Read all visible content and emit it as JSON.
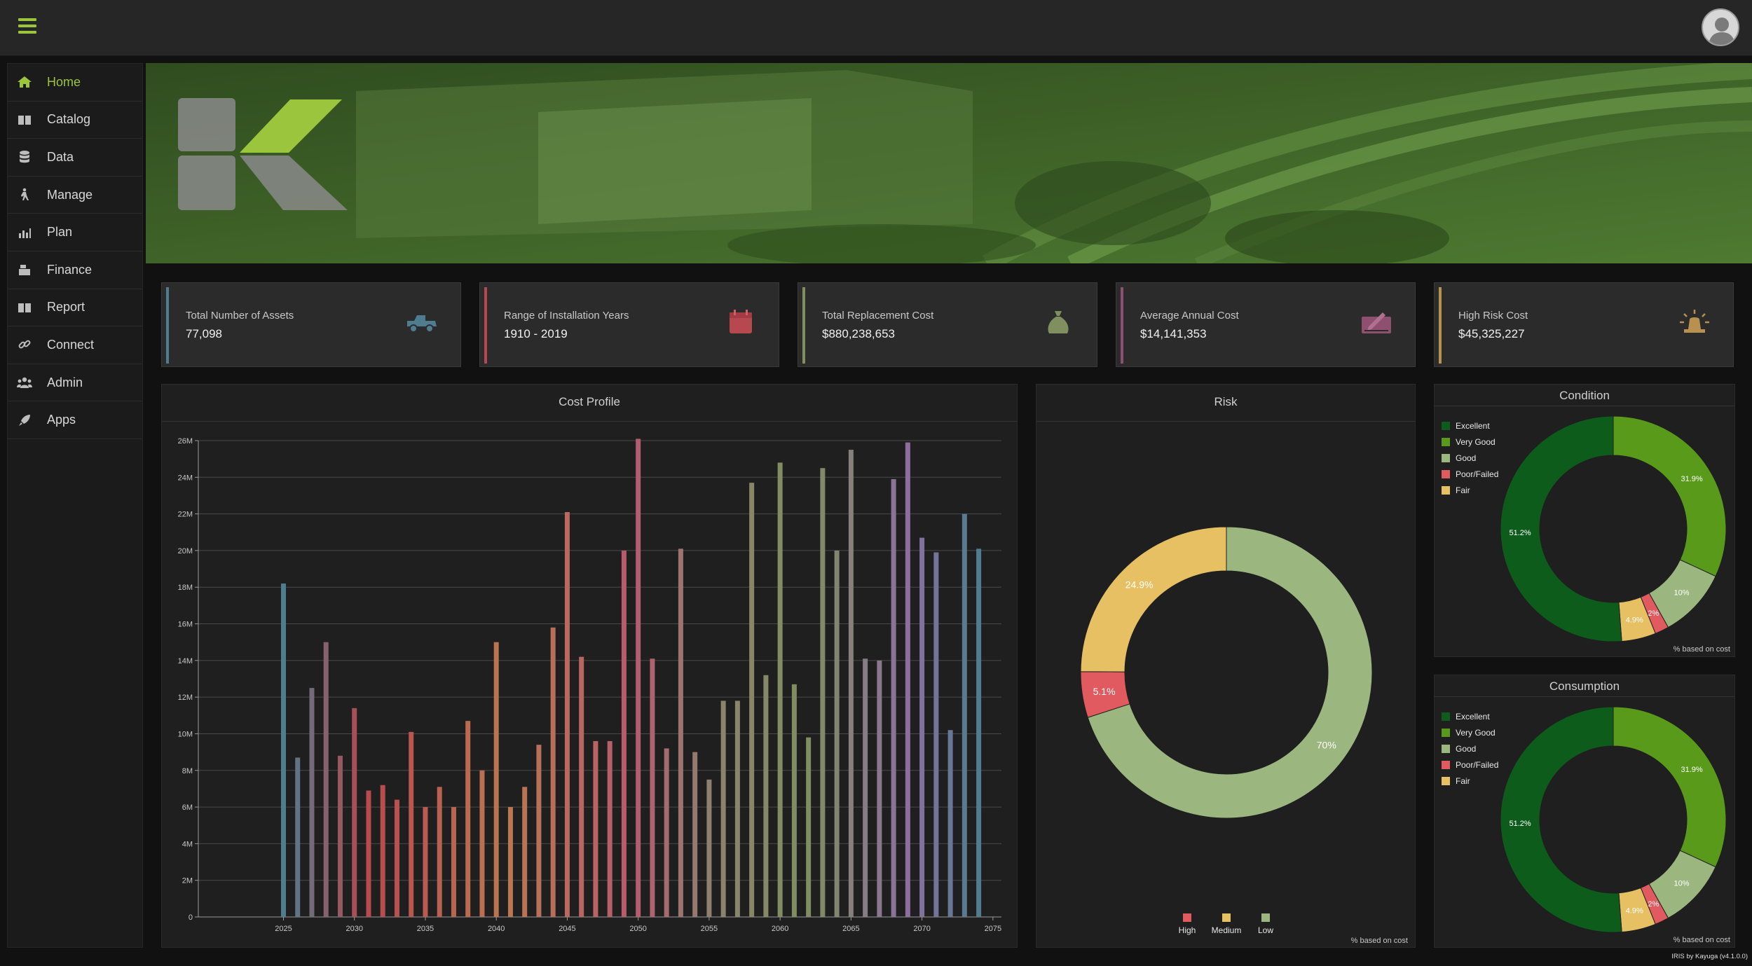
{
  "topbar": {
    "menu_icon": "hamburger-icon",
    "avatar_icon": "user-avatar-icon",
    "accent": "#9bc53d"
  },
  "sidebar": {
    "items": [
      {
        "label": "Home",
        "icon": "home-icon",
        "active": true
      },
      {
        "label": "Catalog",
        "icon": "book-icon",
        "active": false
      },
      {
        "label": "Data",
        "icon": "database-icon",
        "active": false
      },
      {
        "label": "Manage",
        "icon": "hiker-icon",
        "active": false
      },
      {
        "label": "Plan",
        "icon": "bar-chart-icon",
        "active": false
      },
      {
        "label": "Finance",
        "icon": "cash-register-icon",
        "active": false
      },
      {
        "label": "Report",
        "icon": "book-icon",
        "active": false
      },
      {
        "label": "Connect",
        "icon": "link-icon",
        "active": false
      },
      {
        "label": "Admin",
        "icon": "users-icon",
        "active": false
      },
      {
        "label": "Apps",
        "icon": "rocket-icon",
        "active": false
      }
    ]
  },
  "hero": {
    "logo": "K",
    "logo_icon": "kayuga-logo-icon"
  },
  "stats": [
    {
      "label": "Total Number of Assets",
      "value": "77,098",
      "color": "#4f7d8f",
      "icon": "truck-icon"
    },
    {
      "label": "Range of Installation Years",
      "value": "1910 - 2019",
      "color": "#b8484f",
      "icon": "calendar-icon"
    },
    {
      "label": "Total Replacement Cost",
      "value": "$880,238,653",
      "color": "#7f8f5f",
      "icon": "money-bag-icon"
    },
    {
      "label": "Average Annual Cost",
      "value": "$14,141,353",
      "color": "#8f4f6f",
      "icon": "signature-icon"
    },
    {
      "label": "High Risk Cost",
      "value": "$45,325,227",
      "color": "#b89050",
      "icon": "alarm-light-icon"
    }
  ],
  "cost_profile": {
    "title": "Cost Profile",
    "chart_data": {
      "type": "bar",
      "x": [
        2025,
        2026,
        2027,
        2028,
        2029,
        2030,
        2031,
        2032,
        2033,
        2034,
        2035,
        2036,
        2037,
        2038,
        2039,
        2040,
        2041,
        2042,
        2043,
        2044,
        2045,
        2046,
        2047,
        2048,
        2049,
        2050,
        2051,
        2052,
        2053,
        2054,
        2055,
        2056,
        2057,
        2058,
        2059,
        2060,
        2061,
        2062,
        2063,
        2064,
        2065,
        2066,
        2067,
        2068,
        2069,
        2070,
        2071,
        2072,
        2073,
        2074
      ],
      "values": [
        18.2,
        8.7,
        12.5,
        15.0,
        8.8,
        11.4,
        6.9,
        7.2,
        6.4,
        10.1,
        6.0,
        7.1,
        6.0,
        10.7,
        8.0,
        15.0,
        6.0,
        7.1,
        9.4,
        15.8,
        22.1,
        14.2,
        9.6,
        9.6,
        20.0,
        26.1,
        14.1,
        9.2,
        20.1,
        9.0,
        7.5,
        11.8,
        11.8,
        23.7,
        13.2,
        24.8,
        12.7,
        9.8,
        24.5,
        20.0,
        25.5,
        14.1,
        14.0,
        23.9,
        25.9,
        20.7,
        19.9,
        10.2,
        22.0,
        20.1
      ],
      "unit": "M",
      "ylim": [
        0,
        26
      ],
      "yticks": [
        "0",
        "2M",
        "4M",
        "6M",
        "8M",
        "10M",
        "12M",
        "14M",
        "16M",
        "18M",
        "20M",
        "22M",
        "24M",
        "26M"
      ],
      "xticks": [
        "2025",
        "2030",
        "2035",
        "2040",
        "2045",
        "2050",
        "2055",
        "2060",
        "2065",
        "2070",
        "2075"
      ],
      "xlim": [
        2019,
        2075.6
      ],
      "grid": true
    }
  },
  "risk": {
    "title": "Risk",
    "note": "% based on cost",
    "chart_data": {
      "type": "pie",
      "slices": [
        {
          "label": "Low",
          "value": 70,
          "text": "70%",
          "color": "#9bb77f"
        },
        {
          "label": "High",
          "value": 5.1,
          "text": "5.1%",
          "color": "#e05a5f"
        },
        {
          "label": "Medium",
          "value": 24.9,
          "text": "24.9%",
          "color": "#e8c064"
        }
      ],
      "legend": [
        "High",
        "Medium",
        "Low"
      ],
      "legend_colors": [
        "#e05a5f",
        "#e8c064",
        "#9bb77f"
      ],
      "legend_position": "bottom"
    }
  },
  "condition": {
    "title": "Condition",
    "note": "% based on cost",
    "chart_data": {
      "type": "pie",
      "slices": [
        {
          "label": "Very Good",
          "value": 31.9,
          "text": "31.9%",
          "color": "#5a9a1a"
        },
        {
          "label": "Good",
          "value": 10,
          "text": "10%",
          "color": "#9bb77f"
        },
        {
          "label": "Poor/Failed",
          "value": 2,
          "text": "2%",
          "color": "#e05a5f"
        },
        {
          "label": "Fair",
          "value": 4.9,
          "text": "4.9%",
          "color": "#e8c064"
        },
        {
          "label": "Excellent",
          "value": 51.2,
          "text": "51.2%",
          "color": "#0d5c1c"
        }
      ],
      "legend": [
        "Excellent",
        "Very Good",
        "Good",
        "Poor/Failed",
        "Fair"
      ],
      "legend_colors": [
        "#0d5c1c",
        "#5a9a1a",
        "#9bb77f",
        "#e05a5f",
        "#e8c064"
      ],
      "legend_position": "top-left"
    }
  },
  "consumption": {
    "title": "Consumption",
    "note": "% based on cost",
    "chart_data": {
      "type": "pie",
      "slices": [
        {
          "label": "Very Good",
          "value": 31.9,
          "text": "31.9%",
          "color": "#5a9a1a"
        },
        {
          "label": "Good",
          "value": 10,
          "text": "10%",
          "color": "#9bb77f"
        },
        {
          "label": "Poor/Failed",
          "value": 2,
          "text": "2%",
          "color": "#e05a5f"
        },
        {
          "label": "Fair",
          "value": 4.9,
          "text": "4.9%",
          "color": "#e8c064"
        },
        {
          "label": "Excellent",
          "value": 51.2,
          "text": "51.2%",
          "color": "#0d5c1c"
        }
      ],
      "legend": [
        "Excellent",
        "Very Good",
        "Good",
        "Poor/Failed",
        "Fair"
      ],
      "legend_colors": [
        "#0d5c1c",
        "#5a9a1a",
        "#9bb77f",
        "#e05a5f",
        "#e8c064"
      ],
      "legend_position": "top-left"
    }
  },
  "footer": {
    "credit": "IRIS by Kayuga (v4.1.0.0)"
  }
}
